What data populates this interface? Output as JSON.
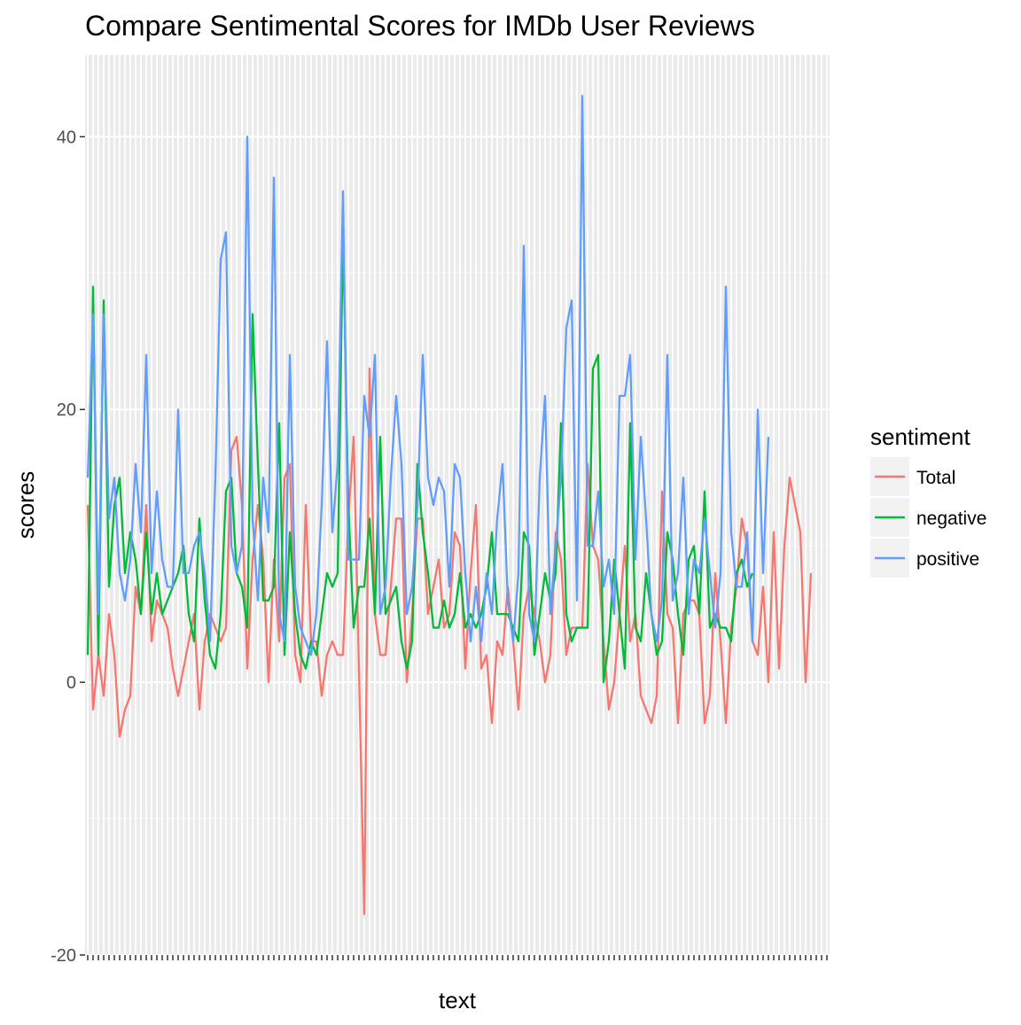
{
  "chart_data": {
    "type": "line",
    "title": "Compare Sentimental Scores for IMDb User Reviews",
    "xlabel": "text",
    "ylabel": "scores",
    "ylim": [
      -20,
      46
    ],
    "yticks": [
      -20,
      0,
      20,
      40
    ],
    "grid": true,
    "legend_position": "right",
    "legend_title": "sentiment",
    "x_count": 140,
    "series": [
      {
        "name": "Total",
        "color": "#F8766D",
        "values": [
          13,
          -2,
          2,
          -1,
          5,
          2,
          -4,
          -2,
          -1,
          7,
          5,
          13,
          3,
          6,
          5,
          4,
          1,
          -1,
          1,
          3,
          5,
          -2,
          3,
          5,
          4,
          3,
          4,
          17,
          18,
          13,
          1,
          9,
          13,
          9,
          0,
          9,
          3,
          15,
          16,
          2,
          0,
          13,
          3,
          3,
          -1,
          2,
          3,
          2,
          2,
          12,
          18,
          1,
          -17,
          23,
          5,
          2,
          2,
          7,
          12,
          12,
          0,
          5,
          12,
          12,
          5,
          7,
          9,
          4,
          5,
          11,
          10,
          1,
          8,
          13,
          1,
          2,
          -3,
          3,
          2,
          7,
          3,
          -2,
          5,
          7,
          5,
          3,
          0,
          2,
          11,
          9,
          2,
          4,
          4,
          4,
          16,
          10,
          9,
          3,
          -2,
          0,
          5,
          10,
          3,
          5,
          -1,
          -2,
          -3,
          -1,
          14,
          5,
          4,
          -3,
          5,
          6,
          6,
          5,
          -3,
          -1,
          8,
          3,
          -3,
          4,
          7,
          12,
          10,
          3,
          2,
          7,
          0,
          11,
          1,
          10,
          15,
          13,
          11,
          0,
          8
        ]
      },
      {
        "name": "negative",
        "color": "#00BA38",
        "values": [
          2,
          29,
          2,
          28,
          7,
          13,
          15,
          8,
          11,
          9,
          5,
          11,
          5,
          8,
          5,
          6,
          7,
          8,
          10,
          5,
          3,
          12,
          6,
          2,
          1,
          5,
          14,
          15,
          8,
          7,
          4,
          27,
          16,
          6,
          6,
          7,
          19,
          2,
          11,
          5,
          2,
          1,
          3,
          2,
          5,
          8,
          7,
          8,
          33,
          13,
          4,
          7,
          7,
          12,
          5,
          18,
          5,
          6,
          7,
          3,
          1,
          3,
          16,
          11,
          8,
          4,
          4,
          6,
          4,
          5,
          8,
          4,
          5,
          4,
          5,
          7,
          11,
          5,
          5,
          5,
          4,
          3,
          11,
          10,
          2,
          5,
          8,
          6,
          8,
          19,
          5,
          3,
          4,
          4,
          4,
          23,
          24,
          0,
          3,
          9,
          5,
          1,
          19,
          4,
          3,
          8,
          5,
          2,
          3,
          11,
          9,
          5,
          2,
          9,
          10,
          5,
          14,
          4,
          5,
          4,
          4,
          3,
          8,
          9,
          7,
          8
        ]
      },
      {
        "name": "positive",
        "color": "#619CFF",
        "values": [
          15,
          27,
          5,
          27,
          12,
          15,
          8,
          6,
          9,
          16,
          11,
          24,
          8,
          14,
          9,
          7,
          7,
          20,
          8,
          8,
          10,
          11,
          8,
          3,
          15,
          31,
          33,
          10,
          8,
          10,
          40,
          12,
          6,
          15,
          11,
          37,
          5,
          3,
          24,
          7,
          4,
          3,
          2,
          5,
          13,
          25,
          11,
          16,
          36,
          9,
          9,
          9,
          21,
          18,
          24,
          5,
          7,
          15,
          21,
          16,
          5,
          7,
          13,
          24,
          15,
          13,
          15,
          14,
          7,
          16,
          15,
          8,
          3,
          7,
          3,
          8,
          5,
          12,
          16,
          6,
          3,
          8,
          32,
          5,
          3,
          15,
          21,
          5,
          10,
          15,
          26,
          28,
          6,
          43,
          10,
          10,
          14,
          7,
          9,
          5,
          21,
          21,
          24,
          9,
          18,
          12,
          5,
          3,
          6,
          24,
          6,
          8,
          15,
          5,
          9,
          8,
          12,
          8,
          4,
          8,
          29,
          11,
          7,
          7,
          11,
          3,
          20,
          8,
          18
        ]
      }
    ]
  }
}
